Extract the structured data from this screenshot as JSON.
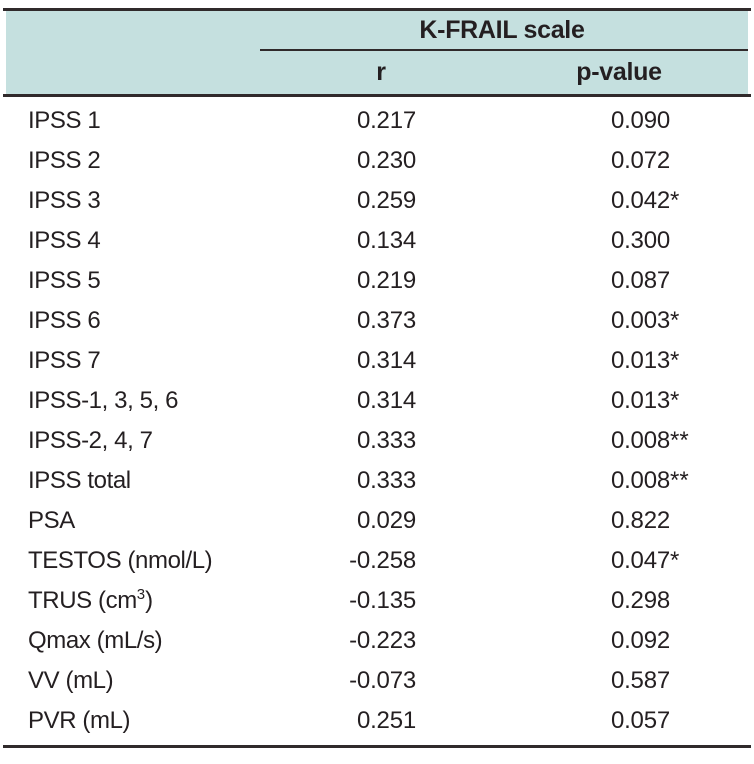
{
  "table": {
    "header": {
      "group_label": "K-FRAIL scale",
      "col_r": "r",
      "col_p": "p-value"
    },
    "rows": [
      {
        "label": [
          "IPSS 1"
        ],
        "r": "0.217",
        "p": "0.090",
        "stars": ""
      },
      {
        "label": [
          "IPSS 2"
        ],
        "r": "0.230",
        "p": "0.072",
        "stars": ""
      },
      {
        "label": [
          "IPSS 3"
        ],
        "r": "0.259",
        "p": "0.042",
        "stars": "*"
      },
      {
        "label": [
          "IPSS 4"
        ],
        "r": "0.134",
        "p": "0.300",
        "stars": ""
      },
      {
        "label": [
          "IPSS 5"
        ],
        "r": "0.219",
        "p": "0.087",
        "stars": ""
      },
      {
        "label": [
          "IPSS 6"
        ],
        "r": "0.373",
        "p": "0.003",
        "stars": "*"
      },
      {
        "label": [
          "IPSS 7"
        ],
        "r": "0.314",
        "p": "0.013",
        "stars": "*"
      },
      {
        "label": [
          "IPSS-1, 3, 5, 6"
        ],
        "r": "0.314",
        "p": "0.013",
        "stars": "*"
      },
      {
        "label": [
          "IPSS-2, 4, 7"
        ],
        "r": "0.333",
        "p": "0.008",
        "stars": "**"
      },
      {
        "label": [
          "IPSS total"
        ],
        "r": "0.333",
        "p": "0.008",
        "stars": "**"
      },
      {
        "label": [
          "PSA"
        ],
        "r": "0.029",
        "p": "0.822",
        "stars": ""
      },
      {
        "label": [
          "TESTOS (nmol/L)"
        ],
        "r": "-0.258",
        "p": "0.047",
        "stars": "*"
      },
      {
        "label": [
          "TRUS (cm",
          {
            "sup": "3"
          },
          ")"
        ],
        "r": "-0.135",
        "p": "0.298",
        "stars": ""
      },
      {
        "label": [
          "Qmax (mL/s)"
        ],
        "r": "-0.223",
        "p": "0.092",
        "stars": ""
      },
      {
        "label": [
          "VV (mL)"
        ],
        "r": "-0.073",
        "p": "0.587",
        "stars": ""
      },
      {
        "label": [
          "PVR (mL)"
        ],
        "r": "0.251",
        "p": "0.057",
        "stars": ""
      }
    ],
    "colors": {
      "header_bg": "#c5e0df",
      "rule": "#302a2b",
      "text": "#241f21"
    }
  }
}
